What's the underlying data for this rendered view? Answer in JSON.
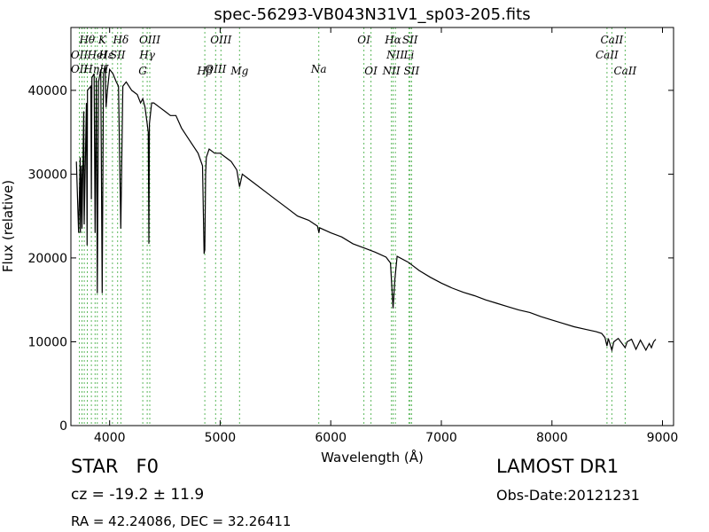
{
  "chart_data": {
    "type": "line",
    "title": "spec-56293-VB043N31V1_sp03-205.fits",
    "xlabel": "Wavelength (Å)",
    "ylabel": "Flux (relative)",
    "xlim": [
      3650,
      9100
    ],
    "ylim": [
      0,
      47500
    ],
    "x_ticks": [
      4000,
      5000,
      6000,
      7000,
      8000,
      9000
    ],
    "y_ticks": [
      0,
      10000,
      20000,
      30000,
      40000
    ],
    "x_tick_labels": [
      "4000",
      "5000",
      "6000",
      "7000",
      "8000",
      "9000"
    ],
    "y_tick_labels": [
      "0",
      "10000",
      "20000",
      "30000",
      "40000"
    ],
    "grid": false,
    "legend": "none",
    "line_color": "#000000",
    "marker_line_color": "#5cb85c",
    "series": [
      {
        "x": [
          3700,
          3720,
          3734,
          3736,
          3746,
          3750,
          3766,
          3770,
          3790,
          3797,
          3800,
          3830,
          3835,
          3840,
          3860,
          3869,
          3880,
          3889,
          3900,
          3920,
          3933,
          3945,
          3960,
          3968,
          3980,
          4000,
          4030,
          4060,
          4080,
          4101,
          4120,
          4150,
          4200,
          4250,
          4280,
          4300,
          4320,
          4340,
          4350,
          4355,
          4360,
          4380,
          4400,
          4450,
          4500,
          4550,
          4600,
          4650,
          4700,
          4750,
          4800,
          4840,
          4855,
          4861,
          4868,
          4875,
          4900,
          4950,
          5000,
          5050,
          5100,
          5150,
          5175,
          5200,
          5250,
          5300,
          5400,
          5500,
          5600,
          5700,
          5800,
          5880,
          5893,
          5900,
          6000,
          6100,
          6200,
          6300,
          6400,
          6500,
          6540,
          6563,
          6580,
          6600,
          6700,
          6800,
          6900,
          7000,
          7100,
          7200,
          7300,
          7400,
          7500,
          7600,
          7700,
          7800,
          7900,
          8000,
          8100,
          8200,
          8300,
          8400,
          8450,
          8480,
          8498,
          8510,
          8542,
          8560,
          8600,
          8662,
          8680,
          8720,
          8760,
          8800,
          8850,
          8880,
          8900,
          8920,
          8940
        ],
        "values": [
          31500,
          23000,
          32000,
          23000,
          31000,
          23500,
          37500,
          24000,
          38500,
          21500,
          40000,
          40500,
          27000,
          41500,
          42000,
          23000,
          41500,
          15800,
          41000,
          42500,
          15800,
          42000,
          43000,
          38000,
          40000,
          42500,
          42000,
          41000,
          40500,
          23500,
          40500,
          41000,
          40000,
          39500,
          38500,
          39000,
          38000,
          36000,
          35000,
          21700,
          36000,
          38500,
          38500,
          38000,
          37500,
          37000,
          37000,
          35500,
          34500,
          33500,
          32500,
          31000,
          20500,
          21000,
          30000,
          32000,
          33000,
          32500,
          32500,
          32000,
          31500,
          30500,
          28500,
          30000,
          29500,
          29000,
          28000,
          27000,
          26000,
          25000,
          24500,
          23800,
          23000,
          23600,
          23000,
          22500,
          21700,
          21200,
          20700,
          20100,
          19400,
          14000,
          17500,
          20200,
          19500,
          18500,
          17700,
          17000,
          16400,
          15900,
          15500,
          15000,
          14600,
          14200,
          13800,
          13500,
          13000,
          12600,
          12200,
          11800,
          11500,
          11200,
          11000,
          10500,
          9500,
          10400,
          9000,
          10000,
          10400,
          9300,
          10000,
          10300,
          9100,
          10200,
          9000,
          9800,
          9300,
          10000,
          10300
        ]
      }
    ]
  },
  "lines": {
    "positions": [
      3727,
      3750,
      3771,
      3798,
      3835,
      3869,
      3889,
      3934,
      3970,
      4026,
      4072,
      4102,
      4300,
      4340,
      4363,
      4861,
      4959,
      5007,
      5175,
      5892,
      6300,
      6364,
      6548,
      6563,
      6584,
      6707,
      6717,
      6731,
      8498,
      8542,
      8662
    ],
    "labels": [
      {
        "text": "Hθ",
        "x": 3797,
        "row": 1
      },
      {
        "text": "K",
        "x": 3934,
        "row": 1
      },
      {
        "text": "Hδ",
        "x": 4102,
        "row": 1
      },
      {
        "text": "OIII",
        "x": 4363,
        "row": 1
      },
      {
        "text": "OIII",
        "x": 5007,
        "row": 1
      },
      {
        "text": "OI",
        "x": 6300,
        "row": 1
      },
      {
        "text": "Hα",
        "x": 6563,
        "row": 1
      },
      {
        "text": "SII",
        "x": 6717,
        "row": 1
      },
      {
        "text": "CaII",
        "x": 8542,
        "row": 1
      },
      {
        "text": "OII",
        "x": 3727,
        "row": 2
      },
      {
        "text": "Hε",
        "x": 3970,
        "row": 2
      },
      {
        "text": "HeI",
        "x": 3889,
        "row": 2
      },
      {
        "text": "SII",
        "x": 4072,
        "row": 2
      },
      {
        "text": "Hγ",
        "x": 4340,
        "row": 2
      },
      {
        "text": "NII",
        "x": 6584,
        "row": 2
      },
      {
        "text": "Li",
        "x": 6707,
        "row": 2
      },
      {
        "text": "CaII",
        "x": 8498,
        "row": 2
      },
      {
        "text": "OII",
        "x": 3727,
        "row": 3
      },
      {
        "text": "Hη",
        "x": 3835,
        "row": 3
      },
      {
        "text": "H",
        "x": 3950,
        "row": 3
      },
      {
        "text": "OIII",
        "x": 4959,
        "row": 3
      },
      {
        "text": "G",
        "x": 4300,
        "row": 4
      },
      {
        "text": "Hβ",
        "x": 4861,
        "row": 4
      },
      {
        "text": "Mg",
        "x": 5175,
        "row": 4
      },
      {
        "text": "Na",
        "x": 5892,
        "row": 3
      },
      {
        "text": "OI",
        "x": 6364,
        "row": 4
      },
      {
        "text": "NII",
        "x": 6548,
        "row": 4
      },
      {
        "text": "SII",
        "x": 6731,
        "row": 4
      },
      {
        "text": "CaII",
        "x": 8662,
        "row": 4
      }
    ]
  },
  "info": {
    "object_type": "STAR",
    "subclass": "F0",
    "survey": "LAMOST DR1",
    "cz": "cz = -19.2 ± 11.9",
    "obs_date": "Obs-Date:20121231",
    "coords": "RA = 42.24086, DEC = 32.26411"
  }
}
